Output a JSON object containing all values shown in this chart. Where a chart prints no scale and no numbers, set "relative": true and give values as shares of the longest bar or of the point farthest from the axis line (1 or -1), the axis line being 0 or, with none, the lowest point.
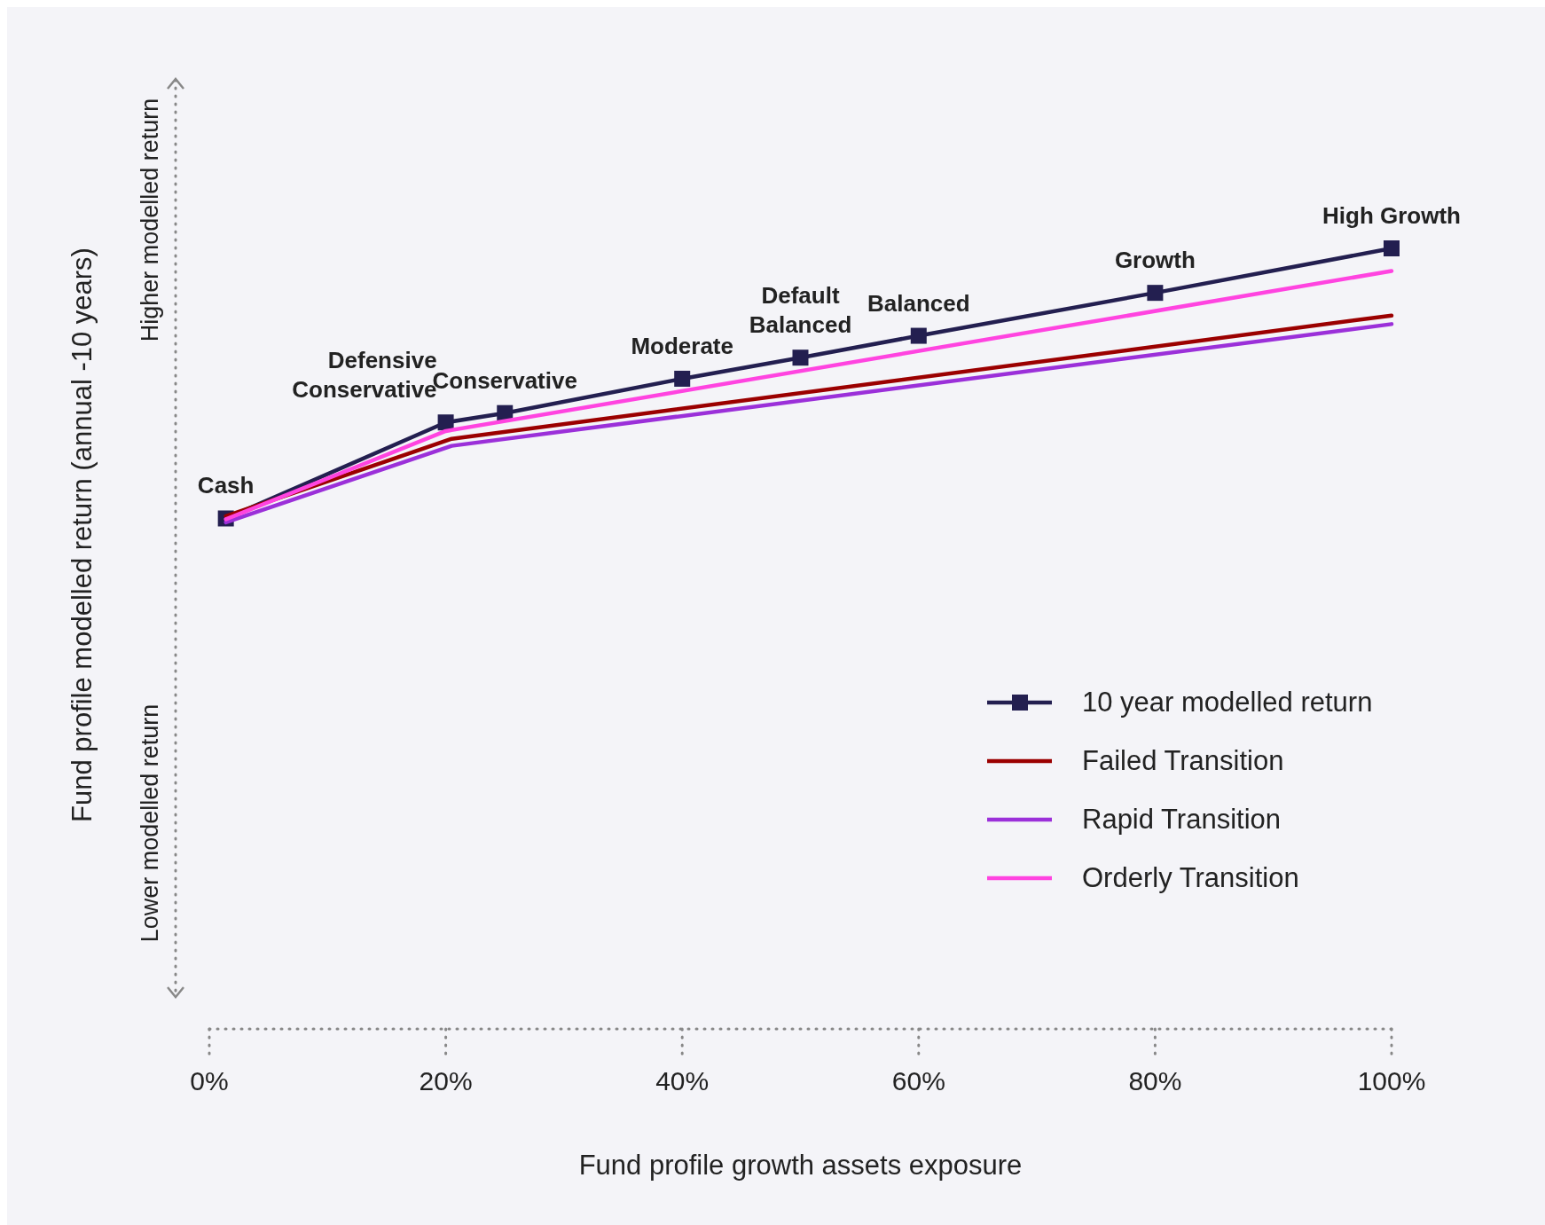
{
  "chart_data": {
    "type": "line",
    "relative": true,
    "xlabel": "Fund profile growth assets exposure",
    "ylabel": "Fund profile modelled return (annual -10 years)",
    "xlim": [
      0,
      100
    ],
    "xticks": [
      {
        "value": 0,
        "label": "0%"
      },
      {
        "value": 20,
        "label": "20%"
      },
      {
        "value": 40,
        "label": "40%"
      },
      {
        "value": 60,
        "label": "60%"
      },
      {
        "value": 80,
        "label": "80%"
      },
      {
        "value": 100,
        "label": "100%"
      }
    ],
    "grid": false,
    "legend": "bottom right",
    "series": [
      {
        "name": "10 year modelled return",
        "color": "#231f50",
        "marker": "square",
        "x": [
          1.4,
          20,
          25,
          40,
          50,
          60,
          80,
          100
        ],
        "values": [
          0.654,
          0.777,
          0.789,
          0.833,
          0.86,
          0.888,
          0.943,
          1
        ]
      },
      {
        "name": "Failed Transition",
        "color": "#9b0000",
        "marker": "none",
        "x": [
          1.4,
          20.5,
          100
        ],
        "values": [
          0.657,
          0.756,
          0.914
        ]
      },
      {
        "name": "Rapid Transition",
        "color": "#9b30d9",
        "marker": "none",
        "x": [
          1.4,
          20.5,
          100
        ],
        "values": [
          0.649,
          0.747,
          0.903
        ]
      },
      {
        "name": "Orderly Transition",
        "color": "#ff44e0",
        "marker": "none",
        "x": [
          1.4,
          20,
          100
        ],
        "values": [
          0.653,
          0.766,
          0.971
        ]
      }
    ],
    "annotations": [
      {
        "text": "Cash",
        "x": 1.4,
        "y": 0.654
      },
      {
        "text": "Defensive\nConservative",
        "x": 20,
        "y": 0.777
      },
      {
        "text": "Conservative",
        "x": 25,
        "y": 0.789
      },
      {
        "text": "Moderate",
        "x": 40,
        "y": 0.833
      },
      {
        "text": "Default\nBalanced",
        "x": 50,
        "y": 0.86
      },
      {
        "text": "Balanced",
        "x": 60,
        "y": 0.888
      },
      {
        "text": "Growth",
        "x": 80,
        "y": 0.943
      },
      {
        "text": "High Growth",
        "x": 100,
        "y": 1
      },
      "Higher modelled return",
      "Lower modelled return"
    ]
  }
}
